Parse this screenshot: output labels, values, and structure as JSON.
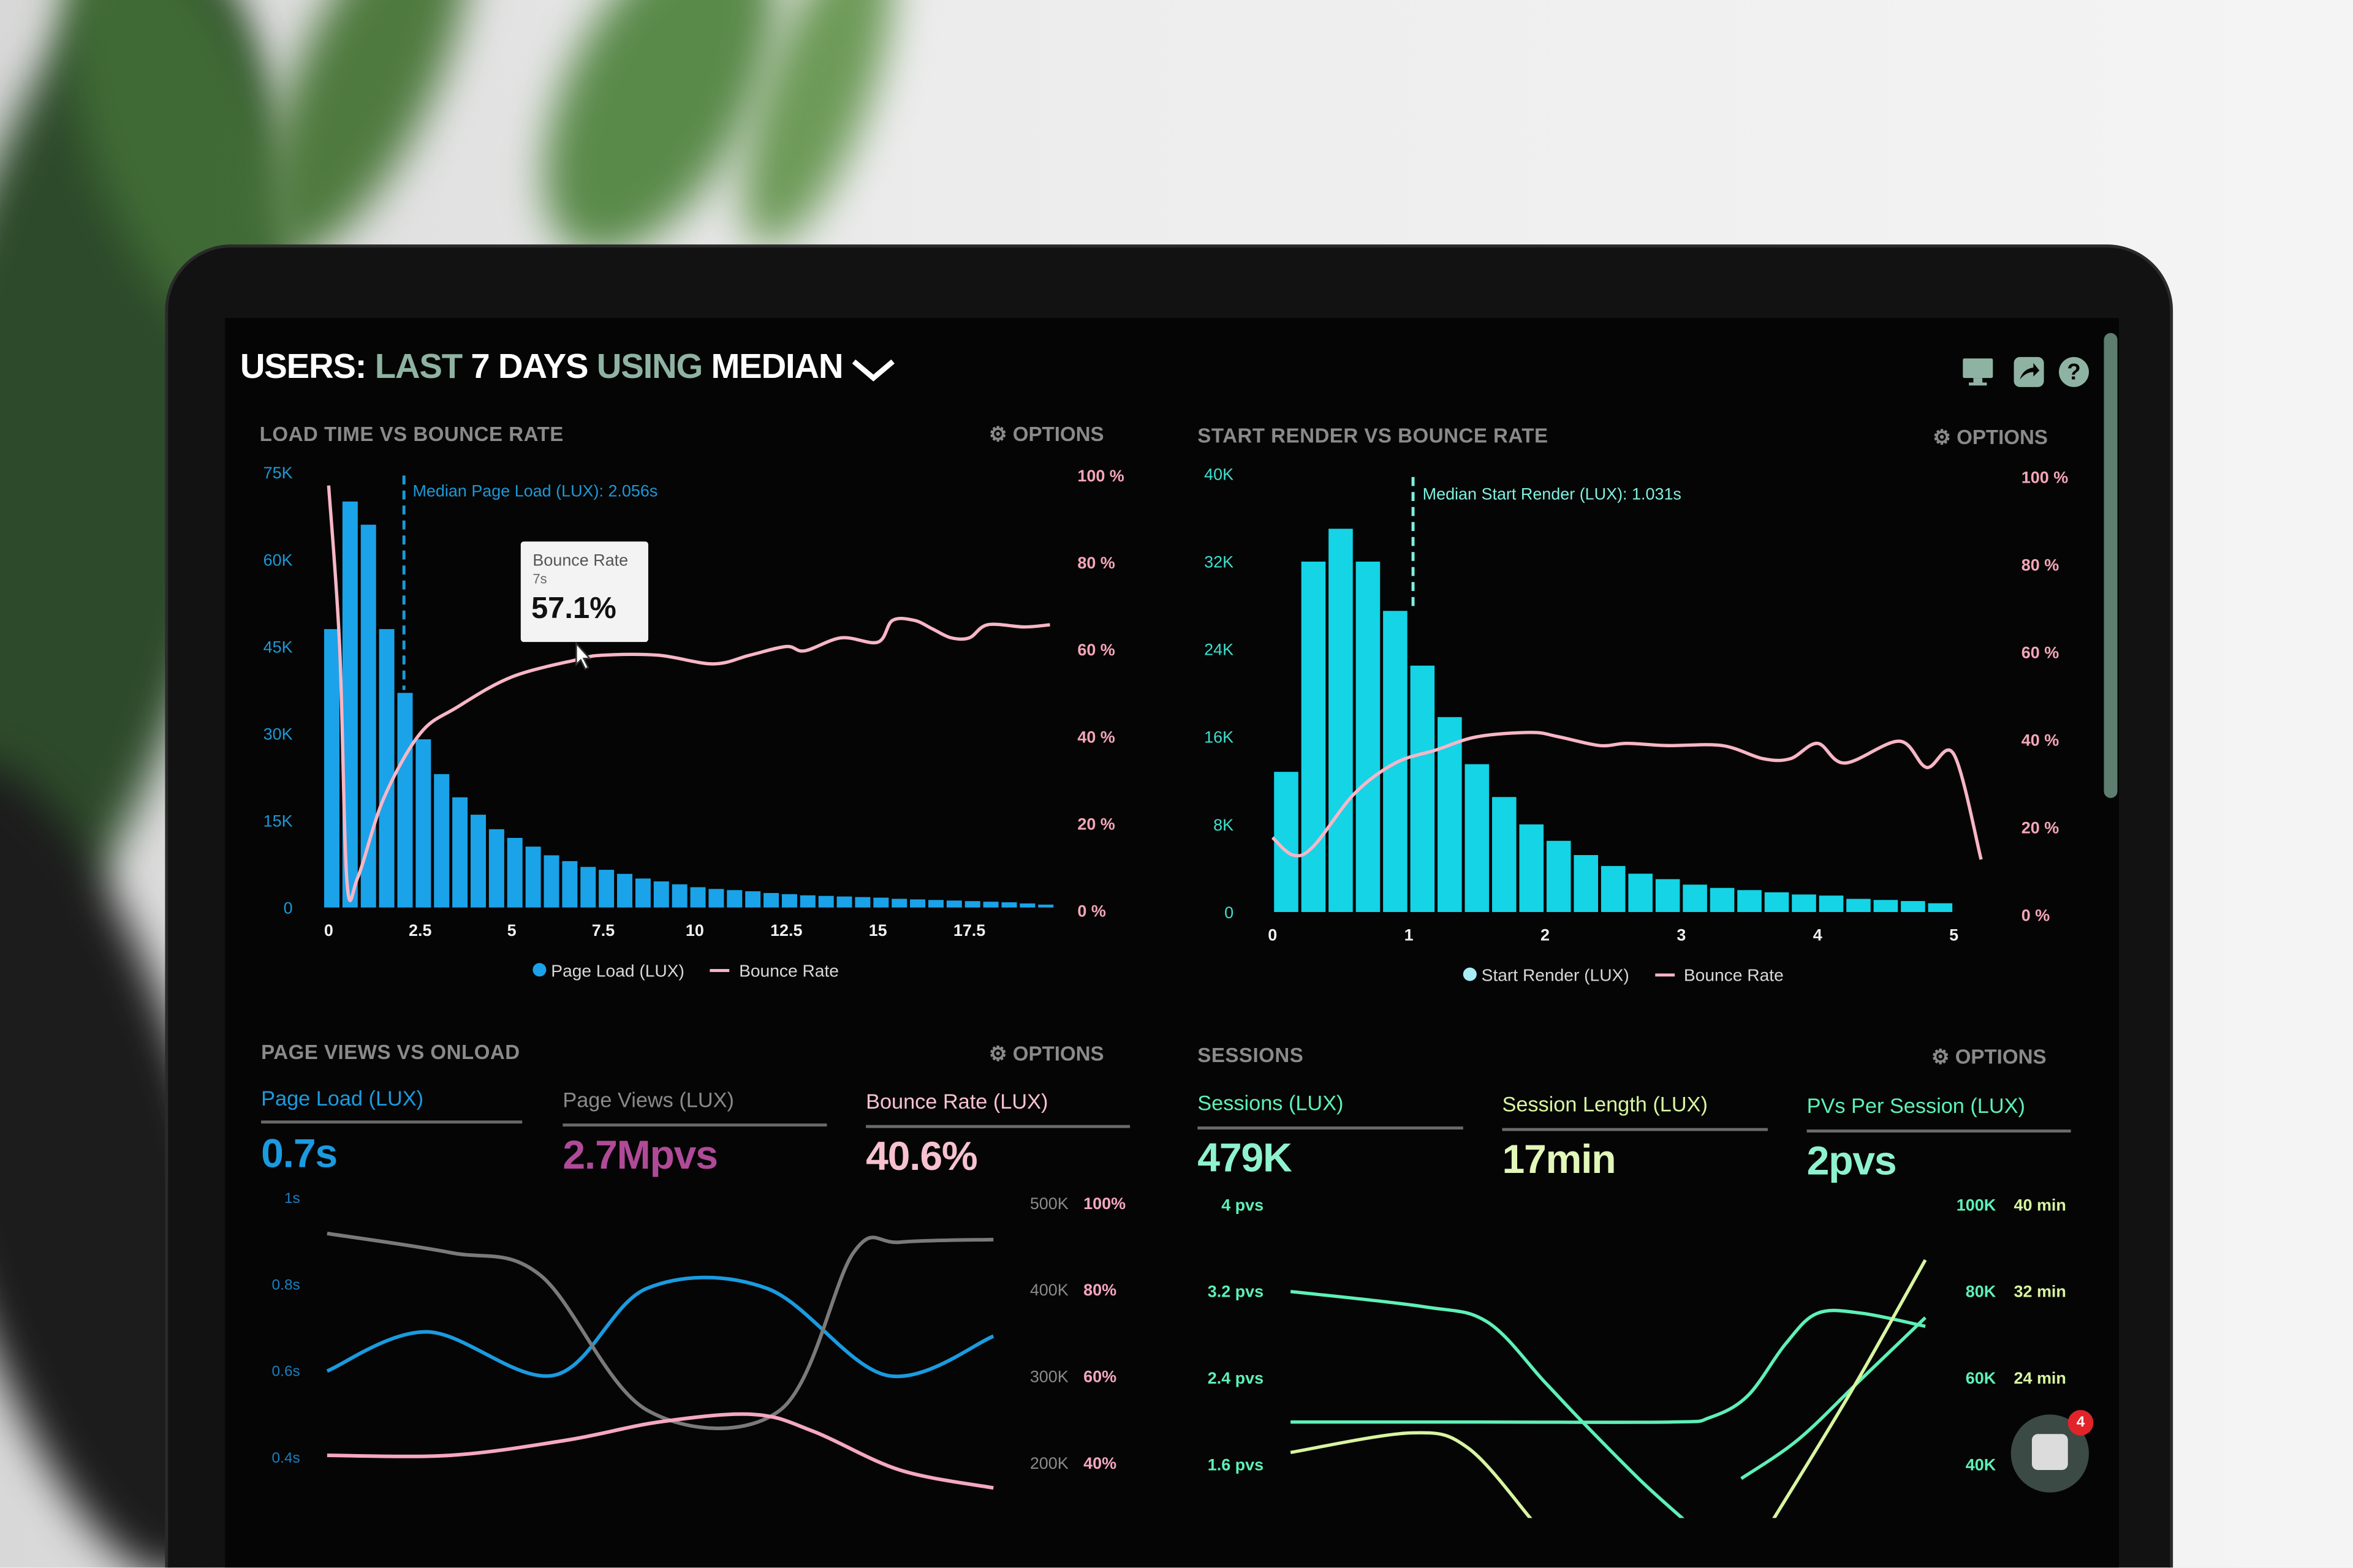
{
  "header": {
    "users": "USERS:",
    "last": "LAST",
    "days": "7 DAYS",
    "using": "USING",
    "median": "MEDIAN",
    "icons": [
      "monitor-icon",
      "share-icon",
      "help-icon"
    ]
  },
  "colors": {
    "blue": "#1aa3e8",
    "cyan": "#14d4e6",
    "pink": "#f7b6c6",
    "green": "#5ef0b8",
    "yellow": "#d8f5a0",
    "purple": "#b04a98",
    "gray": "#8a8a8a"
  },
  "chat": {
    "badge": "4"
  },
  "chart_data": [
    {
      "type": "bar",
      "title": "LOAD TIME VS BOUNCE RATE",
      "options_label": "OPTIONS",
      "y_left_ticks": [
        "0",
        "15K",
        "30K",
        "45K",
        "60K",
        "75K"
      ],
      "ylim_left": [
        0,
        75
      ],
      "y_right_ticks": [
        "0 %",
        "20 %",
        "40 %",
        "60 %",
        "80 %",
        "100 %"
      ],
      "ylim_right": [
        0,
        100
      ],
      "x_ticks": [
        "0",
        "2.5",
        "5",
        "7.5",
        "10",
        "12.5",
        "15",
        "17.5"
      ],
      "bars": {
        "name": "Page Load (LUX)",
        "bin_width": 0.5,
        "values_k": [
          48,
          70,
          66,
          48,
          37,
          29,
          23,
          19,
          16,
          13.5,
          12,
          10.5,
          9,
          8,
          7,
          6.5,
          5.8,
          5,
          4.5,
          4,
          3.5,
          3.2,
          3,
          2.8,
          2.5,
          2.3,
          2.1,
          2,
          1.9,
          1.8,
          1.7,
          1.5,
          1.4,
          1.3,
          1.2,
          1.1,
          1,
          0.9,
          0.7,
          0.5
        ]
      },
      "line": {
        "name": "Bounce Rate",
        "points": [
          [
            0,
            97
          ],
          [
            0.3,
            60
          ],
          [
            0.5,
            6
          ],
          [
            0.8,
            7
          ],
          [
            1.5,
            25
          ],
          [
            2.5,
            40
          ],
          [
            3.5,
            46
          ],
          [
            5,
            53
          ],
          [
            6.8,
            57
          ],
          [
            7.5,
            58
          ],
          [
            9,
            58
          ],
          [
            10.5,
            56
          ],
          [
            11.5,
            58
          ],
          [
            12.5,
            60
          ],
          [
            13,
            59
          ],
          [
            14,
            62
          ],
          [
            15,
            61
          ],
          [
            15.4,
            66
          ],
          [
            16,
            66
          ],
          [
            16.5,
            64
          ],
          [
            17,
            62
          ],
          [
            17.5,
            62
          ],
          [
            18,
            65
          ],
          [
            19,
            64.5
          ],
          [
            19.7,
            65
          ]
        ]
      },
      "median": {
        "label": "Median Page Load (LUX): 2.056s",
        "x": 2.056
      },
      "tooltip": {
        "title": "Bounce Rate",
        "subtitle": "7s",
        "value": "57.1%"
      }
    },
    {
      "type": "bar",
      "title": "START RENDER VS BOUNCE RATE",
      "options_label": "OPTIONS",
      "y_left_ticks": [
        "0",
        "8K",
        "16K",
        "24K",
        "32K",
        "40K"
      ],
      "ylim_left": [
        0,
        40
      ],
      "y_right_ticks": [
        "0 %",
        "20 %",
        "40 %",
        "60 %",
        "80 %",
        "100 %"
      ],
      "ylim_right": [
        0,
        100
      ],
      "x_ticks": [
        "0",
        "1",
        "2",
        "3",
        "4",
        "5"
      ],
      "bars": {
        "name": "Start Render (LUX)",
        "bin_width": 0.2,
        "values_k": [
          12.8,
          32,
          35,
          32,
          27.5,
          22.5,
          17.8,
          13.5,
          10.5,
          8,
          6.5,
          5.2,
          4.2,
          3.5,
          3,
          2.5,
          2.2,
          2,
          1.8,
          1.6,
          1.5,
          1.2,
          1.1,
          1,
          0.8
        ]
      },
      "line": {
        "name": "Bounce Rate",
        "points": [
          [
            0,
            17
          ],
          [
            0.15,
            13
          ],
          [
            0.3,
            15
          ],
          [
            0.6,
            27
          ],
          [
            0.9,
            34
          ],
          [
            1.2,
            37
          ],
          [
            1.5,
            40
          ],
          [
            1.9,
            41
          ],
          [
            2.1,
            40
          ],
          [
            2.4,
            38
          ],
          [
            2.6,
            38.5
          ],
          [
            2.9,
            38
          ],
          [
            3.3,
            38
          ],
          [
            3.6,
            35
          ],
          [
            3.8,
            35
          ],
          [
            4.0,
            38.5
          ],
          [
            4.2,
            34
          ],
          [
            4.6,
            39
          ],
          [
            4.8,
            33
          ],
          [
            5.0,
            36
          ],
          [
            5.2,
            12
          ]
        ]
      },
      "median": {
        "label": "Median Start Render (LUX): 1.031s",
        "x": 1.031
      }
    },
    {
      "type": "line",
      "title": "PAGE VIEWS VS ONLOAD",
      "options_label": "OPTIONS",
      "metrics": [
        {
          "label": "Page Load (LUX)",
          "value": "0.7s"
        },
        {
          "label": "Page Views (LUX)",
          "value": "2.7Mpvs"
        },
        {
          "label": "Bounce Rate (LUX)",
          "value": "40.6%"
        }
      ],
      "y_left_ticks": [
        "1s",
        "0.8s",
        "0.6s",
        "0.4s"
      ],
      "y_right_ticks_views": [
        "500K",
        "400K",
        "300K",
        "200K"
      ],
      "y_right_ticks_bounce": [
        "100%",
        "80%",
        "60%",
        "40%"
      ],
      "series": [
        {
          "name": "Page Load (LUX)",
          "unit": "s",
          "points": [
            [
              0,
              0.6
            ],
            [
              1.5,
              0.69
            ],
            [
              3.4,
              0.59
            ],
            [
              4.8,
              0.79
            ],
            [
              6.6,
              0.79
            ],
            [
              8.4,
              0.59
            ],
            [
              10,
              0.68
            ]
          ]
        },
        {
          "name": "Page Views (LUX)",
          "unit": "K",
          "points": [
            [
              0,
              465
            ],
            [
              1.85,
              443
            ],
            [
              3.2,
              417
            ],
            [
              4.8,
              262
            ],
            [
              6.8,
              262
            ],
            [
              7.9,
              443
            ],
            [
              8.6,
              455
            ],
            [
              10,
              458
            ]
          ]
        },
        {
          "name": "Bounce Rate (LUX)",
          "unit": "%",
          "points": [
            [
              0,
              42
            ],
            [
              1.85,
              42
            ],
            [
              3.6,
              45.5
            ],
            [
              5,
              49.7
            ],
            [
              6.4,
              51.4
            ],
            [
              7.3,
              47.5
            ],
            [
              8.6,
              38.6
            ],
            [
              10,
              34.5
            ]
          ]
        }
      ]
    },
    {
      "type": "line",
      "title": "SESSIONS",
      "options_label": "OPTIONS",
      "metrics": [
        {
          "label": "Sessions (LUX)",
          "value": "479K"
        },
        {
          "label": "Session Length (LUX)",
          "value": "17min"
        },
        {
          "label": "PVs Per Session (LUX)",
          "value": "2pvs"
        }
      ],
      "y_left_ticks": [
        "4 pvs",
        "3.2 pvs",
        "2.4 pvs",
        "1.6 pvs"
      ],
      "y_right_ticks_sessions": [
        "100K",
        "80K",
        "60K",
        "40K"
      ],
      "y_right_ticks_length": [
        "40 min",
        "32 min",
        "24 min"
      ],
      "series": [
        {
          "name": "PVs Per Session (LUX)",
          "unit": "pvs",
          "points": [
            [
              0,
              3.2
            ],
            [
              2.1,
              3.06
            ],
            [
              3.1,
              2.92
            ],
            [
              4.0,
              2.37
            ],
            [
              4.6,
              2.0
            ],
            [
              5.5,
              1.47
            ],
            [
              6.2,
              1.1
            ]
          ]
        },
        {
          "name": "Sessions (LUX)",
          "unit": "K",
          "points": [
            [
              0,
              50
            ],
            [
              3,
              50
            ],
            [
              6,
              50
            ],
            [
              6.6,
              51
            ],
            [
              7.2,
              56
            ],
            [
              7.8,
              68
            ],
            [
              8.3,
              75
            ],
            [
              9,
              75
            ],
            [
              10,
              72
            ]
          ]
        },
        {
          "name": "Sessions (LUX)",
          "unit": "K",
          "points": [
            [
              7.1,
              37
            ],
            [
              8,
              46
            ],
            [
              9,
              60
            ],
            [
              10,
              74
            ]
          ]
        },
        {
          "name": "Session Length (LUX)",
          "unit": "min",
          "points": [
            [
              0,
              17.2
            ],
            [
              1.9,
              19
            ],
            [
              2.8,
              17.6
            ],
            [
              3.8,
              11
            ]
          ]
        },
        {
          "name": "Session Length (LUX)",
          "unit": "min",
          "points": [
            [
              7.6,
              11
            ],
            [
              8.8,
              22.5
            ],
            [
              10,
              34.9
            ]
          ]
        }
      ]
    }
  ]
}
